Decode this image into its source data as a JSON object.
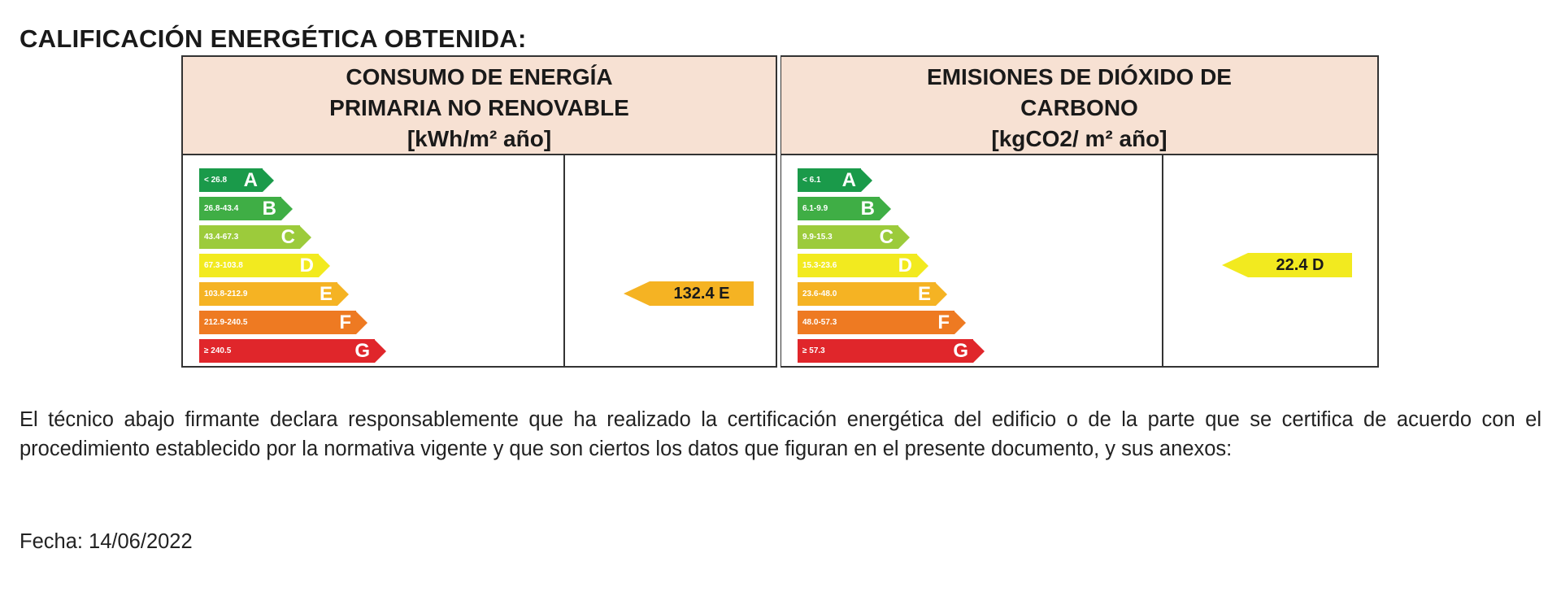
{
  "heading": "CALIFICACIÓN ENERGÉTICA OBTENIDA:",
  "panels": {
    "energy": {
      "title_lines": [
        "CONSUMO DE ENERGÍA",
        "PRIMARIA NO RENOVABLE",
        "[kWh/m² año]"
      ],
      "scale": [
        {
          "range": "< 26.8",
          "letter": "A",
          "color": "#1a9a4a"
        },
        {
          "range": "26.8-43.4",
          "letter": "B",
          "color": "#3fae45"
        },
        {
          "range": "43.4-67.3",
          "letter": "C",
          "color": "#9ccb3b"
        },
        {
          "range": "67.3-103.8",
          "letter": "D",
          "color": "#f2ea1f"
        },
        {
          "range": "103.8-212.9",
          "letter": "E",
          "color": "#f5b323"
        },
        {
          "range": "212.9-240.5",
          "letter": "F",
          "color": "#ee7a22"
        },
        {
          "range": "≥ 240.5",
          "letter": "G",
          "color": "#e0262b"
        }
      ],
      "result": {
        "value": "132.4",
        "letter": "E",
        "label": "132.4 E",
        "color": "#f5b323"
      }
    },
    "emissions": {
      "title_lines": [
        "EMISIONES DE DIÓXIDO DE",
        "CARBONO",
        "[kgCO2/ m² año]"
      ],
      "scale": [
        {
          "range": "< 6.1",
          "letter": "A",
          "color": "#1a9a4a"
        },
        {
          "range": "6.1-9.9",
          "letter": "B",
          "color": "#3fae45"
        },
        {
          "range": "9.9-15.3",
          "letter": "C",
          "color": "#9ccb3b"
        },
        {
          "range": "15.3-23.6",
          "letter": "D",
          "color": "#f2ea1f"
        },
        {
          "range": "23.6-48.0",
          "letter": "E",
          "color": "#f5b323"
        },
        {
          "range": "48.0-57.3",
          "letter": "F",
          "color": "#ee7a22"
        },
        {
          "range": "≥ 57.3",
          "letter": "G",
          "color": "#e0262b"
        }
      ],
      "result": {
        "value": "22.4",
        "letter": "D",
        "label": "22.4 D",
        "color": "#f2ea1f"
      }
    }
  },
  "statement": "El técnico abajo firmante declara responsablemente que ha realizado la certificación energética del edificio o de la parte que se certifica de acuerdo con el procedimiento establecido por la normativa vigente y que son ciertos los datos que figuran en el presente documento, y sus anexos:",
  "date": "Fecha: 14/06/2022"
}
